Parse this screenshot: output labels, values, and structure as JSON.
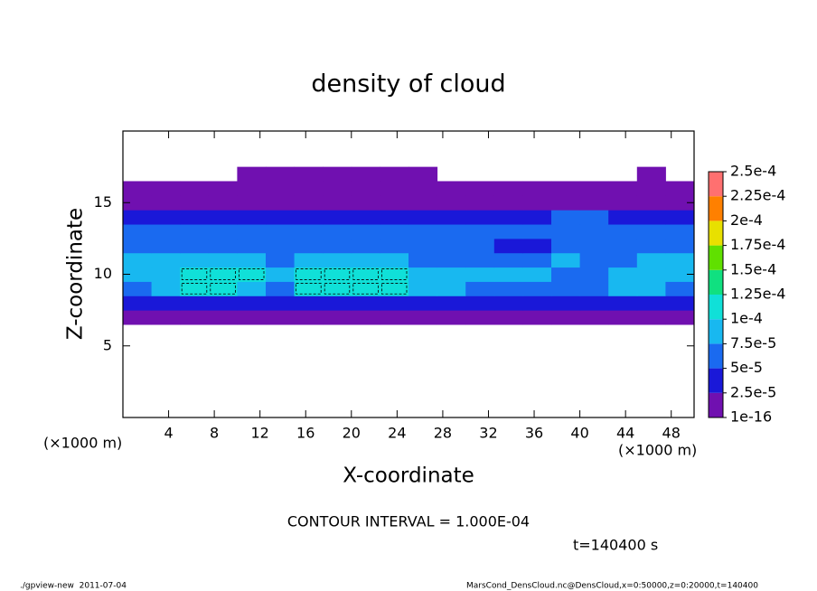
{
  "chart_data": {
    "type": "heatmap",
    "title": "density of cloud",
    "x_label": "X-coordinate",
    "y_label": "Z-coordinate",
    "x_unit": "(×1000 m)",
    "y_unit": "(×1000 m)",
    "contour_note": "CONTOUR INTERVAL = 1.000E-04",
    "time_label": "t=140400 s",
    "footer_left": "./gpview-new  2011-07-04",
    "footer_right": "MarsCond_DensCloud.nc@DensCloud,x=0:50000,z=0:20000,t=140400",
    "xlim": [
      0,
      50
    ],
    "ylim": [
      0,
      20
    ],
    "xticks": [
      4,
      8,
      12,
      16,
      20,
      24,
      28,
      32,
      36,
      40,
      44,
      48
    ],
    "yticks": [
      5,
      10,
      15
    ],
    "x": [
      1.25,
      3.75,
      6.25,
      8.75,
      11.25,
      13.75,
      16.25,
      18.75,
      21.25,
      23.75,
      26.25,
      28.75,
      31.25,
      33.75,
      36.25,
      38.75,
      41.25,
      43.75,
      46.25,
      48.75
    ],
    "z": [
      7,
      8,
      9,
      10,
      11,
      12,
      13,
      14,
      15,
      16,
      17
    ],
    "values": [
      [
        5e-06,
        5e-06,
        5e-06,
        5e-06,
        5e-06,
        5e-06,
        5e-06,
        5e-06,
        5e-06,
        5e-06,
        5e-06,
        5e-06,
        5e-06,
        5e-06,
        5e-06,
        5e-06,
        5e-06,
        5e-06,
        5e-06,
        5e-06
      ],
      [
        3e-05,
        3e-05,
        3e-05,
        3e-05,
        3e-05,
        3e-05,
        3e-05,
        3e-05,
        3e-05,
        3e-05,
        3e-05,
        3e-05,
        4e-05,
        4e-05,
        4e-05,
        4e-05,
        3e-05,
        3e-05,
        3e-05,
        3e-05
      ],
      [
        7e-05,
        8e-05,
        0.00011,
        0.00011,
        9e-05,
        7e-05,
        0.000105,
        0.00011,
        0.00011,
        0.000105,
        9e-05,
        8e-05,
        7e-05,
        7e-05,
        7e-05,
        7e-05,
        7e-05,
        8e-05,
        8e-05,
        7e-05
      ],
      [
        8e-05,
        9e-05,
        0.000115,
        0.00012,
        0.0001,
        8e-05,
        0.00011,
        0.00012,
        0.000115,
        0.00011,
        9e-05,
        8e-05,
        8e-05,
        8e-05,
        8e-05,
        6e-05,
        5e-05,
        8e-05,
        9e-05,
        8e-05
      ],
      [
        8e-05,
        8e-05,
        8e-05,
        8e-05,
        8e-05,
        7e-05,
        8e-05,
        8e-05,
        8e-05,
        8e-05,
        7e-05,
        6e-05,
        5e-05,
        5e-05,
        7e-05,
        8e-05,
        6e-05,
        7e-05,
        8e-05,
        8e-05
      ],
      [
        7e-05,
        7e-05,
        7e-05,
        7e-05,
        7e-05,
        7e-05,
        7e-05,
        7e-05,
        7e-05,
        7e-05,
        6e-05,
        6e-05,
        5e-05,
        4e-05,
        4e-05,
        7e-05,
        7e-05,
        7e-05,
        7e-05,
        7e-05
      ],
      [
        5e-05,
        5e-05,
        5e-05,
        6e-05,
        6e-05,
        6e-05,
        5e-05,
        5e-05,
        6e-05,
        6e-05,
        6e-05,
        6e-05,
        6e-05,
        6e-05,
        7e-05,
        7e-05,
        7e-05,
        6e-05,
        5e-05,
        5e-05
      ],
      [
        3e-05,
        3e-05,
        3e-05,
        3e-05,
        3e-05,
        4e-05,
        4e-05,
        3e-05,
        3e-05,
        4e-05,
        4e-05,
        4e-05,
        4e-05,
        4e-05,
        4e-05,
        5e-05,
        5e-05,
        4e-05,
        3e-05,
        3e-05
      ],
      [
        2e-05,
        2e-05,
        2e-05,
        2e-05,
        2e-05,
        2e-05,
        2e-05,
        2e-05,
        2e-05,
        2e-05,
        2e-05,
        2e-05,
        2e-05,
        2e-05,
        2e-05,
        2e-05,
        2e-05,
        2e-05,
        2e-05,
        2e-05
      ],
      [
        5e-06,
        5e-06,
        5e-06,
        5e-06,
        5e-06,
        5e-06,
        5e-06,
        5e-06,
        5e-06,
        5e-06,
        5e-06,
        5e-06,
        5e-06,
        5e-06,
        5e-06,
        5e-06,
        5e-06,
        5e-06,
        5e-06,
        5e-06
      ],
      [
        null,
        null,
        null,
        null,
        5e-06,
        5e-06,
        5e-06,
        5e-06,
        5e-06,
        5e-06,
        5e-06,
        null,
        null,
        null,
        null,
        null,
        null,
        null,
        5e-06,
        null
      ]
    ],
    "levels": [
      1e-16,
      {
        "value": 2.5e-05,
        "label": "2.5e-5"
      },
      {
        "value": 5e-05,
        "label": "5e-5"
      },
      {
        "value": 7.5e-05,
        "label": "7.5e-5"
      },
      {
        "value": 0.0001,
        "label": "1e-4"
      },
      {
        "value": 0.000125,
        "label": "1.25e-4"
      },
      {
        "value": 0.00015,
        "label": "1.5e-4"
      },
      {
        "value": 0.000175,
        "label": "1.75e-4"
      },
      {
        "value": 0.0002,
        "label": "2e-4"
      },
      {
        "value": 0.000225,
        "label": "2.25e-4"
      },
      {
        "value": 0.00025,
        "label": "2.5e-4"
      }
    ],
    "colors": [
      "#7010b0",
      "#1a18d8",
      "#1a6af0",
      "#18b8f0",
      "#10e0d8",
      "#10e080",
      "#60e000",
      "#e8e000",
      "#ff8000",
      "#ff7070"
    ]
  }
}
